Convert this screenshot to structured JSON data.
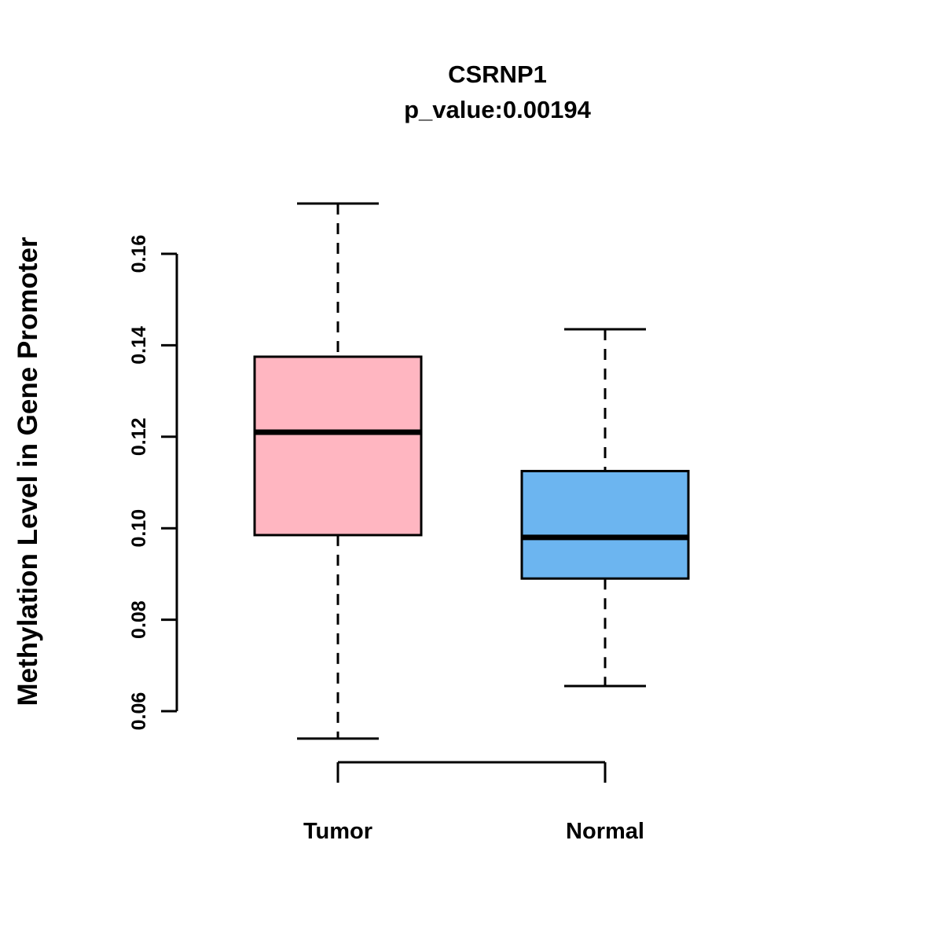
{
  "chart_data": {
    "type": "boxplot",
    "title": "CSRNP1",
    "subtitle": "p_value:0.00194",
    "ylabel": "Methylation Level in Gene Promoter",
    "xlabel": "",
    "ylim": [
      0.06,
      0.16
    ],
    "yticks": [
      0.06,
      0.08,
      0.1,
      0.12,
      0.14,
      0.16
    ],
    "categories": [
      "Tumor",
      "Normal"
    ],
    "grid": false,
    "legend": "none",
    "series": [
      {
        "label": "Tumor",
        "color": "#FFB6C1",
        "whisker_low": 0.054,
        "q1": 0.0985,
        "median": 0.121,
        "q3": 0.1375,
        "whisker_high": 0.171
      },
      {
        "label": "Normal",
        "color": "#6CB5F0",
        "whisker_low": 0.0655,
        "q1": 0.089,
        "median": 0.098,
        "q3": 0.1125,
        "whisker_high": 0.1435
      }
    ]
  }
}
